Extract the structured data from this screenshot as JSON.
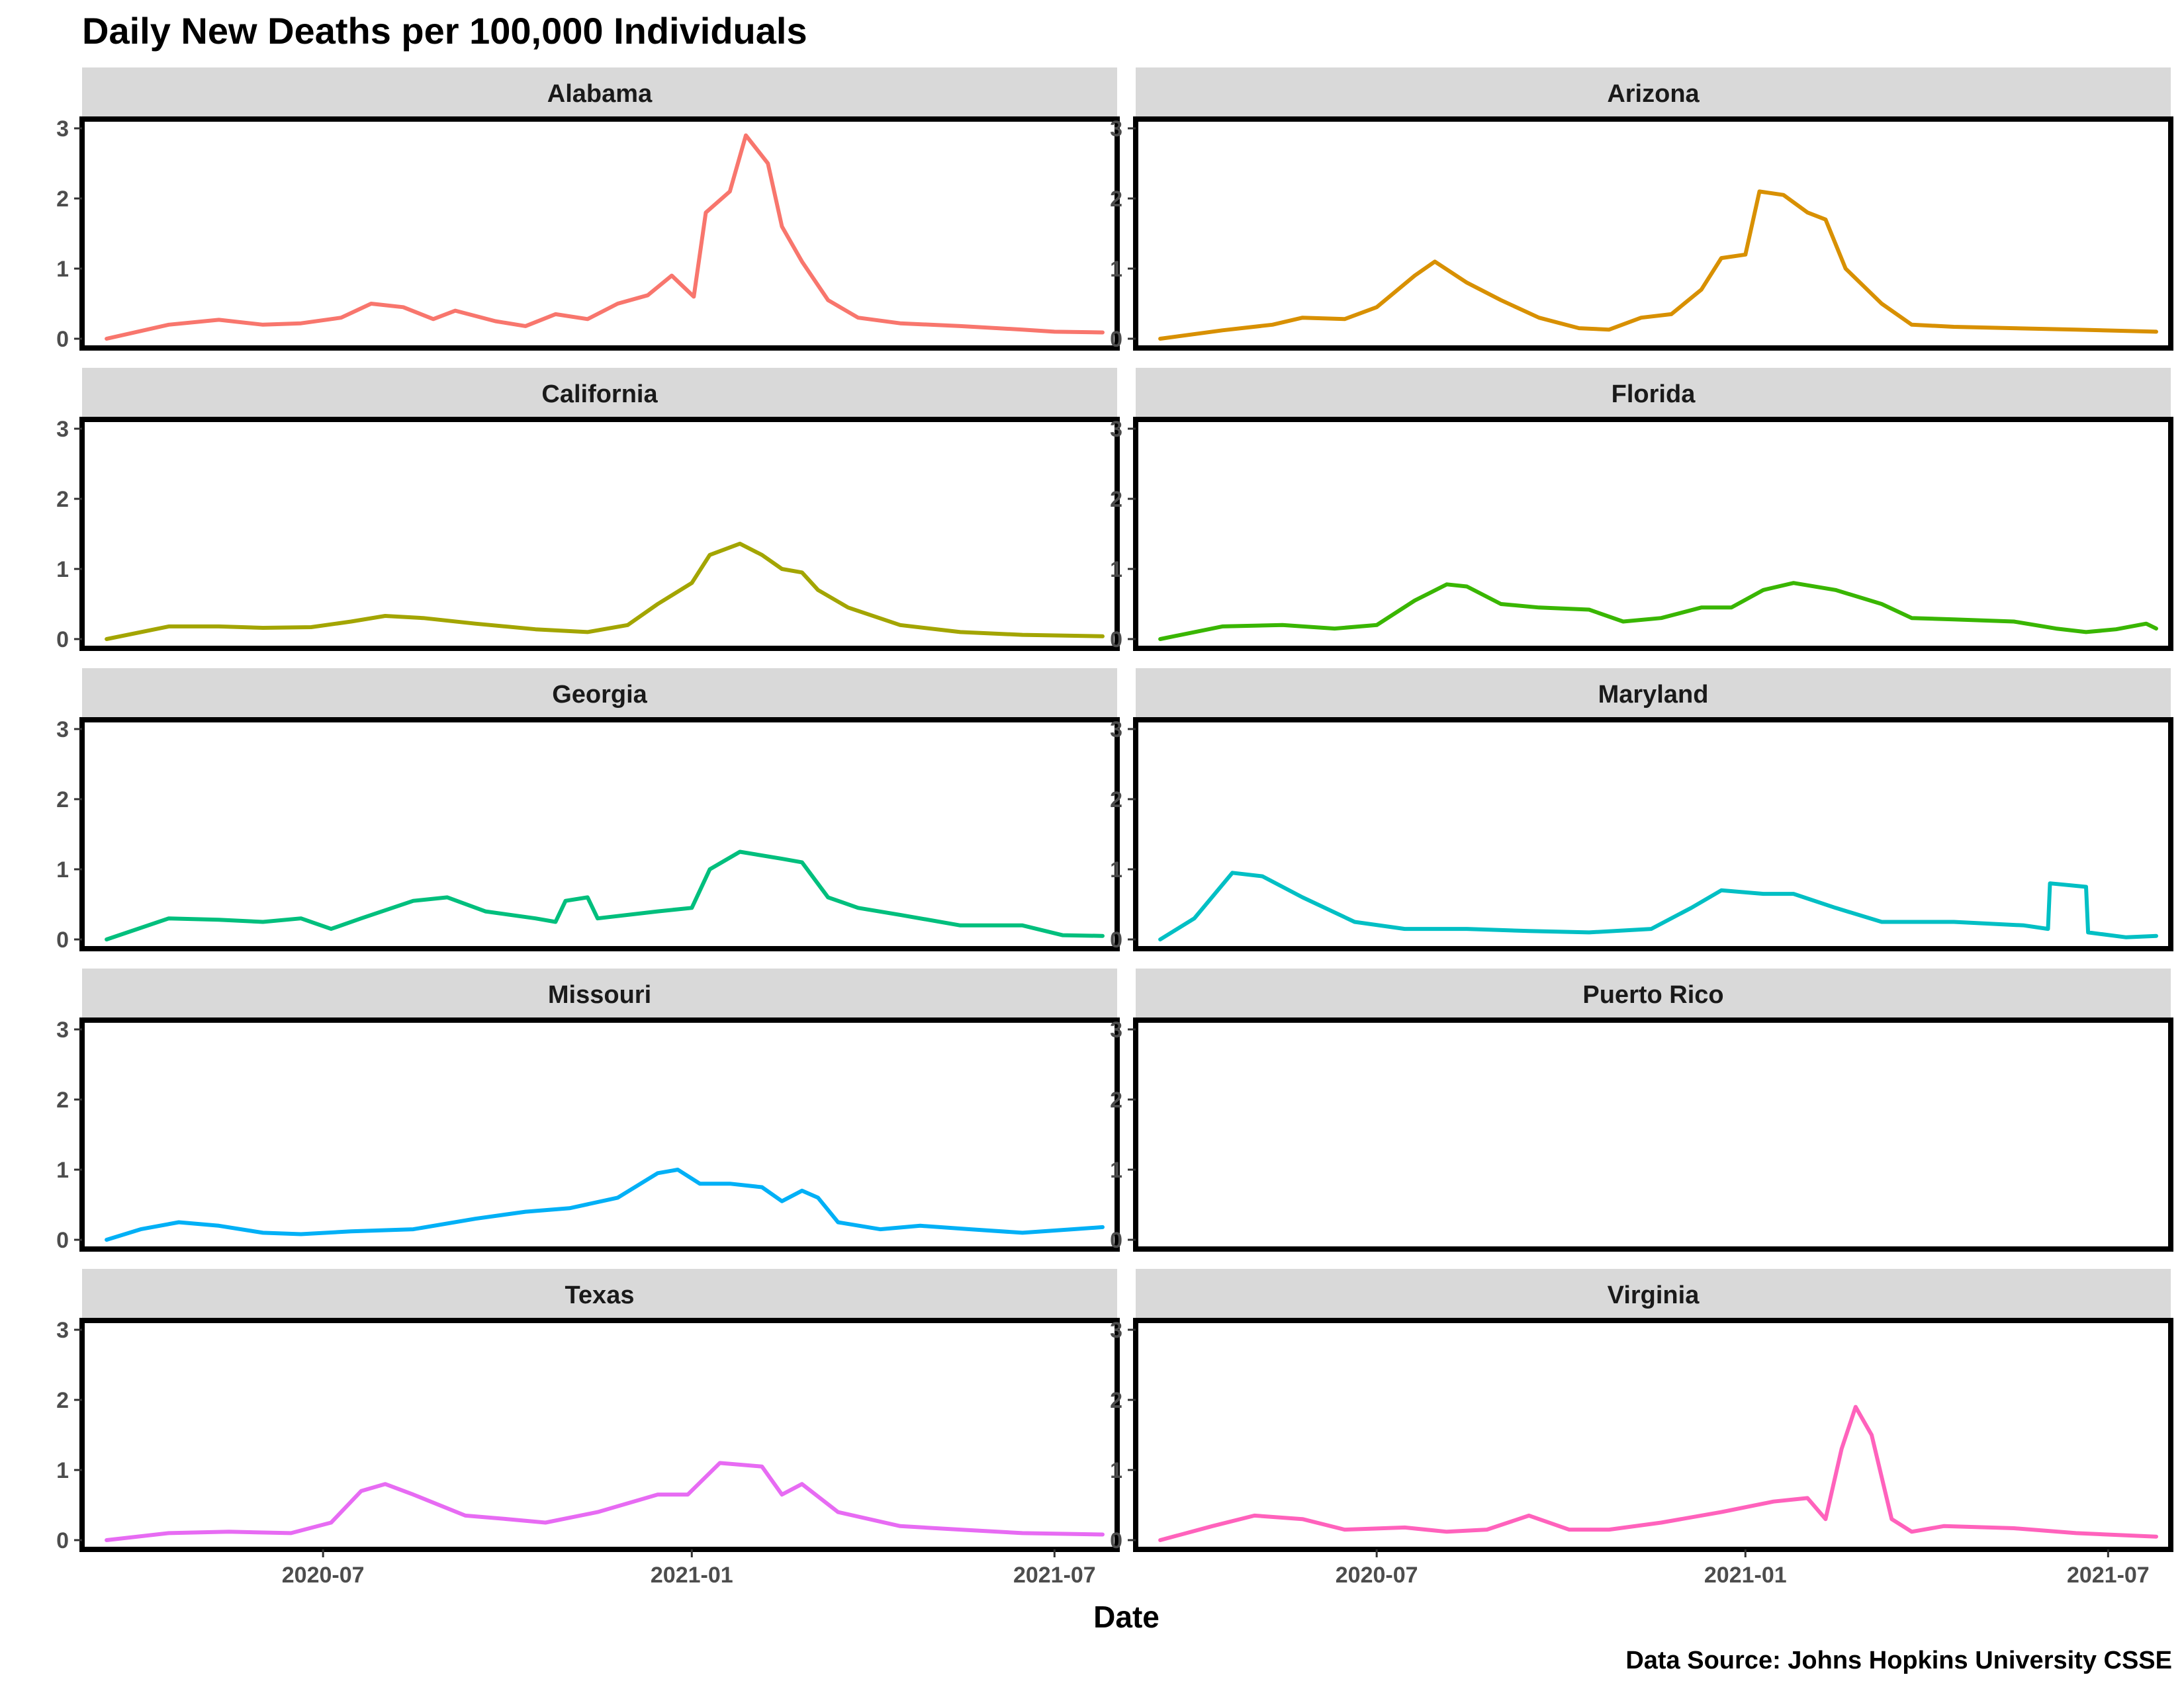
{
  "chart_data": {
    "type": "line",
    "title": "Daily New Deaths per 100,000 Individuals",
    "xlabel": "Date",
    "ylabel": "",
    "caption": "Data Source: Johns Hopkins University CSSE",
    "x_range": [
      "2020-03-10",
      "2021-07-25"
    ],
    "ylim": [
      0,
      3
    ],
    "y_ticks": [
      0,
      1,
      2,
      3
    ],
    "x_ticks": [
      {
        "label": "2020-07",
        "date": "2020-07-01"
      },
      {
        "label": "2021-01",
        "date": "2021-01-01"
      },
      {
        "label": "2021-07",
        "date": "2021-07-01"
      }
    ],
    "legend": "none",
    "grid": false,
    "facets": [
      {
        "name": "Alabama",
        "color": "#F8766D",
        "points": [
          [
            "2020-03-15",
            0
          ],
          [
            "2020-04-15",
            0.2
          ],
          [
            "2020-05-10",
            0.27
          ],
          [
            "2020-06-01",
            0.2
          ],
          [
            "2020-06-20",
            0.22
          ],
          [
            "2020-07-10",
            0.3
          ],
          [
            "2020-07-25",
            0.5
          ],
          [
            "2020-08-10",
            0.45
          ],
          [
            "2020-08-25",
            0.28
          ],
          [
            "2020-09-05",
            0.4
          ],
          [
            "2020-09-25",
            0.25
          ],
          [
            "2020-10-10",
            0.18
          ],
          [
            "2020-10-25",
            0.35
          ],
          [
            "2020-11-10",
            0.28
          ],
          [
            "2020-11-25",
            0.5
          ],
          [
            "2020-12-10",
            0.62
          ],
          [
            "2020-12-22",
            0.9
          ],
          [
            "2021-01-02",
            0.6
          ],
          [
            "2021-01-08",
            1.8
          ],
          [
            "2021-01-20",
            2.1
          ],
          [
            "2021-01-28",
            2.9
          ],
          [
            "2021-02-08",
            2.5
          ],
          [
            "2021-02-15",
            1.6
          ],
          [
            "2021-02-25",
            1.1
          ],
          [
            "2021-03-10",
            0.55
          ],
          [
            "2021-03-25",
            0.3
          ],
          [
            "2021-04-15",
            0.22
          ],
          [
            "2021-05-15",
            0.18
          ],
          [
            "2021-06-15",
            0.13
          ],
          [
            "2021-07-01",
            0.1
          ],
          [
            "2021-07-25",
            0.09
          ]
        ]
      },
      {
        "name": "Arizona",
        "color": "#D89000",
        "points": [
          [
            "2020-03-15",
            0
          ],
          [
            "2020-04-15",
            0.12
          ],
          [
            "2020-05-10",
            0.2
          ],
          [
            "2020-05-25",
            0.3
          ],
          [
            "2020-06-15",
            0.28
          ],
          [
            "2020-07-01",
            0.45
          ],
          [
            "2020-07-20",
            0.9
          ],
          [
            "2020-07-30",
            1.1
          ],
          [
            "2020-08-15",
            0.8
          ],
          [
            "2020-09-01",
            0.55
          ],
          [
            "2020-09-20",
            0.3
          ],
          [
            "2020-10-10",
            0.15
          ],
          [
            "2020-10-25",
            0.13
          ],
          [
            "2020-11-10",
            0.3
          ],
          [
            "2020-11-25",
            0.35
          ],
          [
            "2020-12-10",
            0.7
          ],
          [
            "2020-12-20",
            1.15
          ],
          [
            "2021-01-01",
            1.2
          ],
          [
            "2021-01-08",
            2.1
          ],
          [
            "2021-01-20",
            2.05
          ],
          [
            "2021-02-01",
            1.8
          ],
          [
            "2021-02-10",
            1.7
          ],
          [
            "2021-02-20",
            1.0
          ],
          [
            "2021-03-10",
            0.5
          ],
          [
            "2021-03-25",
            0.2
          ],
          [
            "2021-04-15",
            0.17
          ],
          [
            "2021-05-15",
            0.15
          ],
          [
            "2021-06-15",
            0.13
          ],
          [
            "2021-07-25",
            0.1
          ]
        ]
      },
      {
        "name": "California",
        "color": "#A3A500",
        "points": [
          [
            "2020-03-15",
            0
          ],
          [
            "2020-04-15",
            0.18
          ],
          [
            "2020-05-10",
            0.18
          ],
          [
            "2020-06-01",
            0.16
          ],
          [
            "2020-06-25",
            0.17
          ],
          [
            "2020-07-15",
            0.25
          ],
          [
            "2020-08-01",
            0.33
          ],
          [
            "2020-08-20",
            0.3
          ],
          [
            "2020-09-15",
            0.22
          ],
          [
            "2020-10-15",
            0.14
          ],
          [
            "2020-11-10",
            0.1
          ],
          [
            "2020-11-30",
            0.2
          ],
          [
            "2020-12-15",
            0.5
          ],
          [
            "2021-01-01",
            0.8
          ],
          [
            "2021-01-10",
            1.2
          ],
          [
            "2021-01-25",
            1.36
          ],
          [
            "2021-02-05",
            1.2
          ],
          [
            "2021-02-15",
            1.0
          ],
          [
            "2021-02-25",
            0.95
          ],
          [
            "2021-03-05",
            0.7
          ],
          [
            "2021-03-20",
            0.45
          ],
          [
            "2021-04-15",
            0.2
          ],
          [
            "2021-05-15",
            0.1
          ],
          [
            "2021-06-15",
            0.06
          ],
          [
            "2021-07-25",
            0.04
          ]
        ]
      },
      {
        "name": "Florida",
        "color": "#39B600",
        "points": [
          [
            "2020-03-15",
            0
          ],
          [
            "2020-04-15",
            0.18
          ],
          [
            "2020-05-15",
            0.2
          ],
          [
            "2020-06-10",
            0.15
          ],
          [
            "2020-07-01",
            0.2
          ],
          [
            "2020-07-20",
            0.55
          ],
          [
            "2020-08-05",
            0.78
          ],
          [
            "2020-08-15",
            0.75
          ],
          [
            "2020-09-01",
            0.5
          ],
          [
            "2020-09-20",
            0.45
          ],
          [
            "2020-10-15",
            0.42
          ],
          [
            "2020-11-01",
            0.25
          ],
          [
            "2020-11-20",
            0.3
          ],
          [
            "2020-12-10",
            0.45
          ],
          [
            "2020-12-25",
            0.45
          ],
          [
            "2021-01-10",
            0.7
          ],
          [
            "2021-01-25",
            0.8
          ],
          [
            "2021-02-15",
            0.7
          ],
          [
            "2021-03-10",
            0.5
          ],
          [
            "2021-03-25",
            0.3
          ],
          [
            "2021-04-15",
            0.28
          ],
          [
            "2021-05-15",
            0.25
          ],
          [
            "2021-06-05",
            0.15
          ],
          [
            "2021-06-20",
            0.1
          ],
          [
            "2021-07-05",
            0.14
          ],
          [
            "2021-07-20",
            0.22
          ],
          [
            "2021-07-25",
            0.15
          ]
        ]
      },
      {
        "name": "Georgia",
        "color": "#00BF7D",
        "points": [
          [
            "2020-03-15",
            0
          ],
          [
            "2020-04-15",
            0.3
          ],
          [
            "2020-05-10",
            0.28
          ],
          [
            "2020-06-01",
            0.25
          ],
          [
            "2020-06-20",
            0.3
          ],
          [
            "2020-07-05",
            0.15
          ],
          [
            "2020-07-20",
            0.3
          ],
          [
            "2020-08-15",
            0.55
          ],
          [
            "2020-09-01",
            0.6
          ],
          [
            "2020-09-20",
            0.4
          ],
          [
            "2020-10-15",
            0.3
          ],
          [
            "2020-10-25",
            0.25
          ],
          [
            "2020-10-30",
            0.55
          ],
          [
            "2020-11-10",
            0.6
          ],
          [
            "2020-11-15",
            0.3
          ],
          [
            "2020-12-15",
            0.4
          ],
          [
            "2021-01-01",
            0.45
          ],
          [
            "2021-01-10",
            1.0
          ],
          [
            "2021-01-25",
            1.25
          ],
          [
            "2021-02-15",
            1.15
          ],
          [
            "2021-02-25",
            1.1
          ],
          [
            "2021-03-10",
            0.6
          ],
          [
            "2021-03-25",
            0.45
          ],
          [
            "2021-04-15",
            0.35
          ],
          [
            "2021-05-15",
            0.2
          ],
          [
            "2021-06-15",
            0.2
          ],
          [
            "2021-07-05",
            0.06
          ],
          [
            "2021-07-25",
            0.05
          ]
        ]
      },
      {
        "name": "Maryland",
        "color": "#00BFC4",
        "points": [
          [
            "2020-03-15",
            0
          ],
          [
            "2020-04-01",
            0.3
          ],
          [
            "2020-04-20",
            0.95
          ],
          [
            "2020-05-05",
            0.9
          ],
          [
            "2020-05-25",
            0.6
          ],
          [
            "2020-06-20",
            0.25
          ],
          [
            "2020-07-15",
            0.15
          ],
          [
            "2020-08-15",
            0.15
          ],
          [
            "2020-09-15",
            0.12
          ],
          [
            "2020-10-15",
            0.1
          ],
          [
            "2020-11-15",
            0.15
          ],
          [
            "2020-12-05",
            0.45
          ],
          [
            "2020-12-20",
            0.7
          ],
          [
            "2021-01-10",
            0.65
          ],
          [
            "2021-01-25",
            0.65
          ],
          [
            "2021-02-15",
            0.45
          ],
          [
            "2021-03-10",
            0.25
          ],
          [
            "2021-04-15",
            0.25
          ],
          [
            "2021-05-20",
            0.2
          ],
          [
            "2021-06-01",
            0.15
          ],
          [
            "2021-06-02",
            0.8
          ],
          [
            "2021-06-20",
            0.75
          ],
          [
            "2021-06-21",
            0.1
          ],
          [
            "2021-07-10",
            0.03
          ],
          [
            "2021-07-25",
            0.05
          ]
        ]
      },
      {
        "name": "Missouri",
        "color": "#00B0F6",
        "points": [
          [
            "2020-03-15",
            0
          ],
          [
            "2020-04-01",
            0.15
          ],
          [
            "2020-04-20",
            0.25
          ],
          [
            "2020-05-10",
            0.2
          ],
          [
            "2020-06-01",
            0.1
          ],
          [
            "2020-06-20",
            0.08
          ],
          [
            "2020-07-15",
            0.12
          ],
          [
            "2020-08-15",
            0.15
          ],
          [
            "2020-09-15",
            0.3
          ],
          [
            "2020-10-10",
            0.4
          ],
          [
            "2020-11-01",
            0.45
          ],
          [
            "2020-11-25",
            0.6
          ],
          [
            "2020-12-15",
            0.95
          ],
          [
            "2020-12-25",
            1.0
          ],
          [
            "2021-01-05",
            0.8
          ],
          [
            "2021-01-20",
            0.8
          ],
          [
            "2021-02-05",
            0.75
          ],
          [
            "2021-02-15",
            0.55
          ],
          [
            "2021-02-25",
            0.7
          ],
          [
            "2021-03-05",
            0.6
          ],
          [
            "2021-03-15",
            0.25
          ],
          [
            "2021-04-05",
            0.15
          ],
          [
            "2021-04-25",
            0.2
          ],
          [
            "2021-05-20",
            0.15
          ],
          [
            "2021-06-15",
            0.1
          ],
          [
            "2021-07-10",
            0.15
          ],
          [
            "2021-07-25",
            0.18
          ]
        ]
      },
      {
        "name": "Puerto Rico",
        "color": "#9590FF",
        "points": []
      },
      {
        "name": "Texas",
        "color": "#E76BF3",
        "points": [
          [
            "2020-03-15",
            0
          ],
          [
            "2020-04-15",
            0.1
          ],
          [
            "2020-05-15",
            0.12
          ],
          [
            "2020-06-15",
            0.1
          ],
          [
            "2020-07-05",
            0.25
          ],
          [
            "2020-07-20",
            0.7
          ],
          [
            "2020-08-01",
            0.8
          ],
          [
            "2020-08-15",
            0.65
          ],
          [
            "2020-09-10",
            0.35
          ],
          [
            "2020-10-01",
            0.3
          ],
          [
            "2020-10-20",
            0.25
          ],
          [
            "2020-11-15",
            0.4
          ],
          [
            "2020-12-15",
            0.65
          ],
          [
            "2020-12-30",
            0.65
          ],
          [
            "2021-01-15",
            1.1
          ],
          [
            "2021-02-05",
            1.05
          ],
          [
            "2021-02-15",
            0.65
          ],
          [
            "2021-02-25",
            0.8
          ],
          [
            "2021-03-15",
            0.4
          ],
          [
            "2021-04-15",
            0.2
          ],
          [
            "2021-05-15",
            0.15
          ],
          [
            "2021-06-15",
            0.1
          ],
          [
            "2021-07-25",
            0.08
          ]
        ]
      },
      {
        "name": "Virginia",
        "color": "#FF62BC",
        "points": [
          [
            "2020-03-15",
            0
          ],
          [
            "2020-04-10",
            0.2
          ],
          [
            "2020-05-01",
            0.35
          ],
          [
            "2020-05-25",
            0.3
          ],
          [
            "2020-06-15",
            0.15
          ],
          [
            "2020-07-15",
            0.18
          ],
          [
            "2020-08-05",
            0.12
          ],
          [
            "2020-08-25",
            0.15
          ],
          [
            "2020-09-15",
            0.35
          ],
          [
            "2020-10-05",
            0.15
          ],
          [
            "2020-10-25",
            0.15
          ],
          [
            "2020-11-20",
            0.25
          ],
          [
            "2020-12-20",
            0.4
          ],
          [
            "2021-01-15",
            0.55
          ],
          [
            "2021-02-01",
            0.6
          ],
          [
            "2021-02-10",
            0.3
          ],
          [
            "2021-02-18",
            1.3
          ],
          [
            "2021-02-25",
            1.9
          ],
          [
            "2021-03-05",
            1.5
          ],
          [
            "2021-03-15",
            0.3
          ],
          [
            "2021-03-25",
            0.12
          ],
          [
            "2021-04-10",
            0.2
          ],
          [
            "2021-05-15",
            0.17
          ],
          [
            "2021-06-15",
            0.1
          ],
          [
            "2021-07-25",
            0.05
          ]
        ]
      }
    ]
  }
}
